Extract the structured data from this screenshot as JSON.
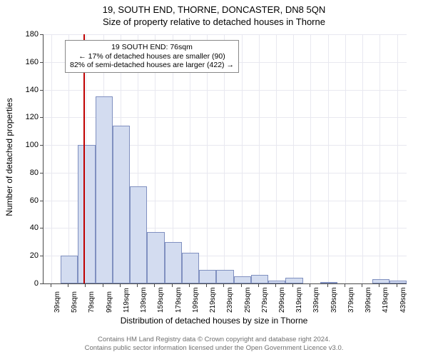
{
  "title": "19, SOUTH END, THORNE, DONCASTER, DN8 5QN",
  "subtitle": "Size of property relative to detached houses in Thorne",
  "yaxis_label": "Number of detached properties",
  "xaxis_label": "Distribution of detached houses by size in Thorne",
  "annotation": {
    "line1": "19 SOUTH END: 76sqm",
    "line2": "← 17% of detached houses are smaller (90)",
    "line3": "82% of semi-detached houses are larger (422) →"
  },
  "marker_value": 76,
  "footer_line1": "Contains HM Land Registry data © Crown copyright and database right 2024.",
  "footer_line2": "Contains public sector information licensed under the Open Government Licence v3.0.",
  "chart": {
    "type": "histogram",
    "ylim": [
      0,
      180
    ],
    "ytick_step": 20,
    "x_domain": [
      30,
      450
    ],
    "x_tick_start": 39,
    "x_tick_step": 20,
    "x_tick_count": 21,
    "x_tick_suffix": "sqm",
    "bin_width": 20,
    "bin_start": 30,
    "values": [
      0,
      20,
      100,
      135,
      114,
      70,
      37,
      30,
      22,
      10,
      10,
      5,
      6,
      2,
      4,
      0,
      1,
      0,
      0,
      3,
      2
    ],
    "bar_fill": "#d3dcf0",
    "bar_stroke": "#8090c0",
    "grid_color": "#e8e8f0",
    "axis_color": "#4a4a4a",
    "marker_color": "#c00000",
    "background_color": "#ffffff",
    "title_fontsize": 13,
    "label_fontsize": 12,
    "tick_fontsize": 11
  }
}
